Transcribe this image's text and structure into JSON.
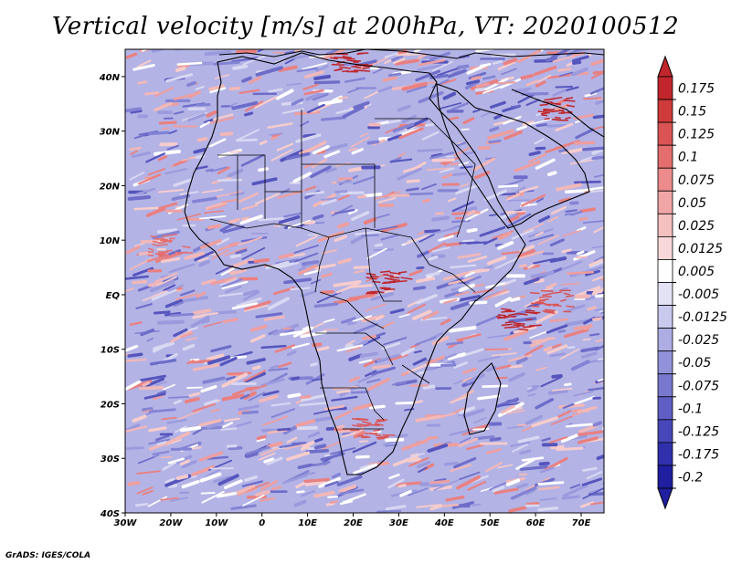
{
  "title": "Vertical velocity [m/s] at 200hPa, VT: 2020100512",
  "credit": "GrADS: IGES/COLA",
  "map": {
    "region": "Africa",
    "lon_range": [
      -30,
      75
    ],
    "lat_range": [
      -40,
      45
    ],
    "lat_labels": [
      {
        "lat": 40,
        "label": "40N"
      },
      {
        "lat": 30,
        "label": "30N"
      },
      {
        "lat": 20,
        "label": "20N"
      },
      {
        "lat": 10,
        "label": "10N"
      },
      {
        "lat": 0,
        "label": "EQ"
      },
      {
        "lat": -10,
        "label": "10S"
      },
      {
        "lat": -20,
        "label": "20S"
      },
      {
        "lat": -30,
        "label": "30S"
      },
      {
        "lat": -40,
        "label": "40S"
      }
    ],
    "lon_labels": [
      {
        "lon": -30,
        "label": "30W"
      },
      {
        "lon": -20,
        "label": "20W"
      },
      {
        "lon": -10,
        "label": "10W"
      },
      {
        "lon": 0,
        "label": "0"
      },
      {
        "lon": 10,
        "label": "10E"
      },
      {
        "lon": 20,
        "label": "20E"
      },
      {
        "lon": 30,
        "label": "30E"
      },
      {
        "lon": 40,
        "label": "40E"
      },
      {
        "lon": 50,
        "label": "50E"
      },
      {
        "lon": 60,
        "label": "60E"
      },
      {
        "lon": 70,
        "label": "70E"
      }
    ]
  },
  "colorbar": {
    "levels": [
      "0.175",
      "0.15",
      "0.125",
      "0.1",
      "0.075",
      "0.05",
      "0.025",
      "0.0125",
      "0.005",
      "-0.005",
      "-0.0125",
      "-0.025",
      "-0.05",
      "-0.075",
      "-0.1",
      "-0.125",
      "-0.175",
      "-0.2"
    ],
    "colors": [
      "#c0262b",
      "#cf3a3a",
      "#db5454",
      "#e46e6e",
      "#ec8b8b",
      "#f1a6a6",
      "#f5c0c0",
      "#f8d8d8",
      "#ffffff",
      "#e3e3f5",
      "#c9c9ee",
      "#adade4",
      "#9292da",
      "#7878cf",
      "#5e5ec4",
      "#4747b9",
      "#3030ad",
      "#1f1fa0"
    ]
  }
}
